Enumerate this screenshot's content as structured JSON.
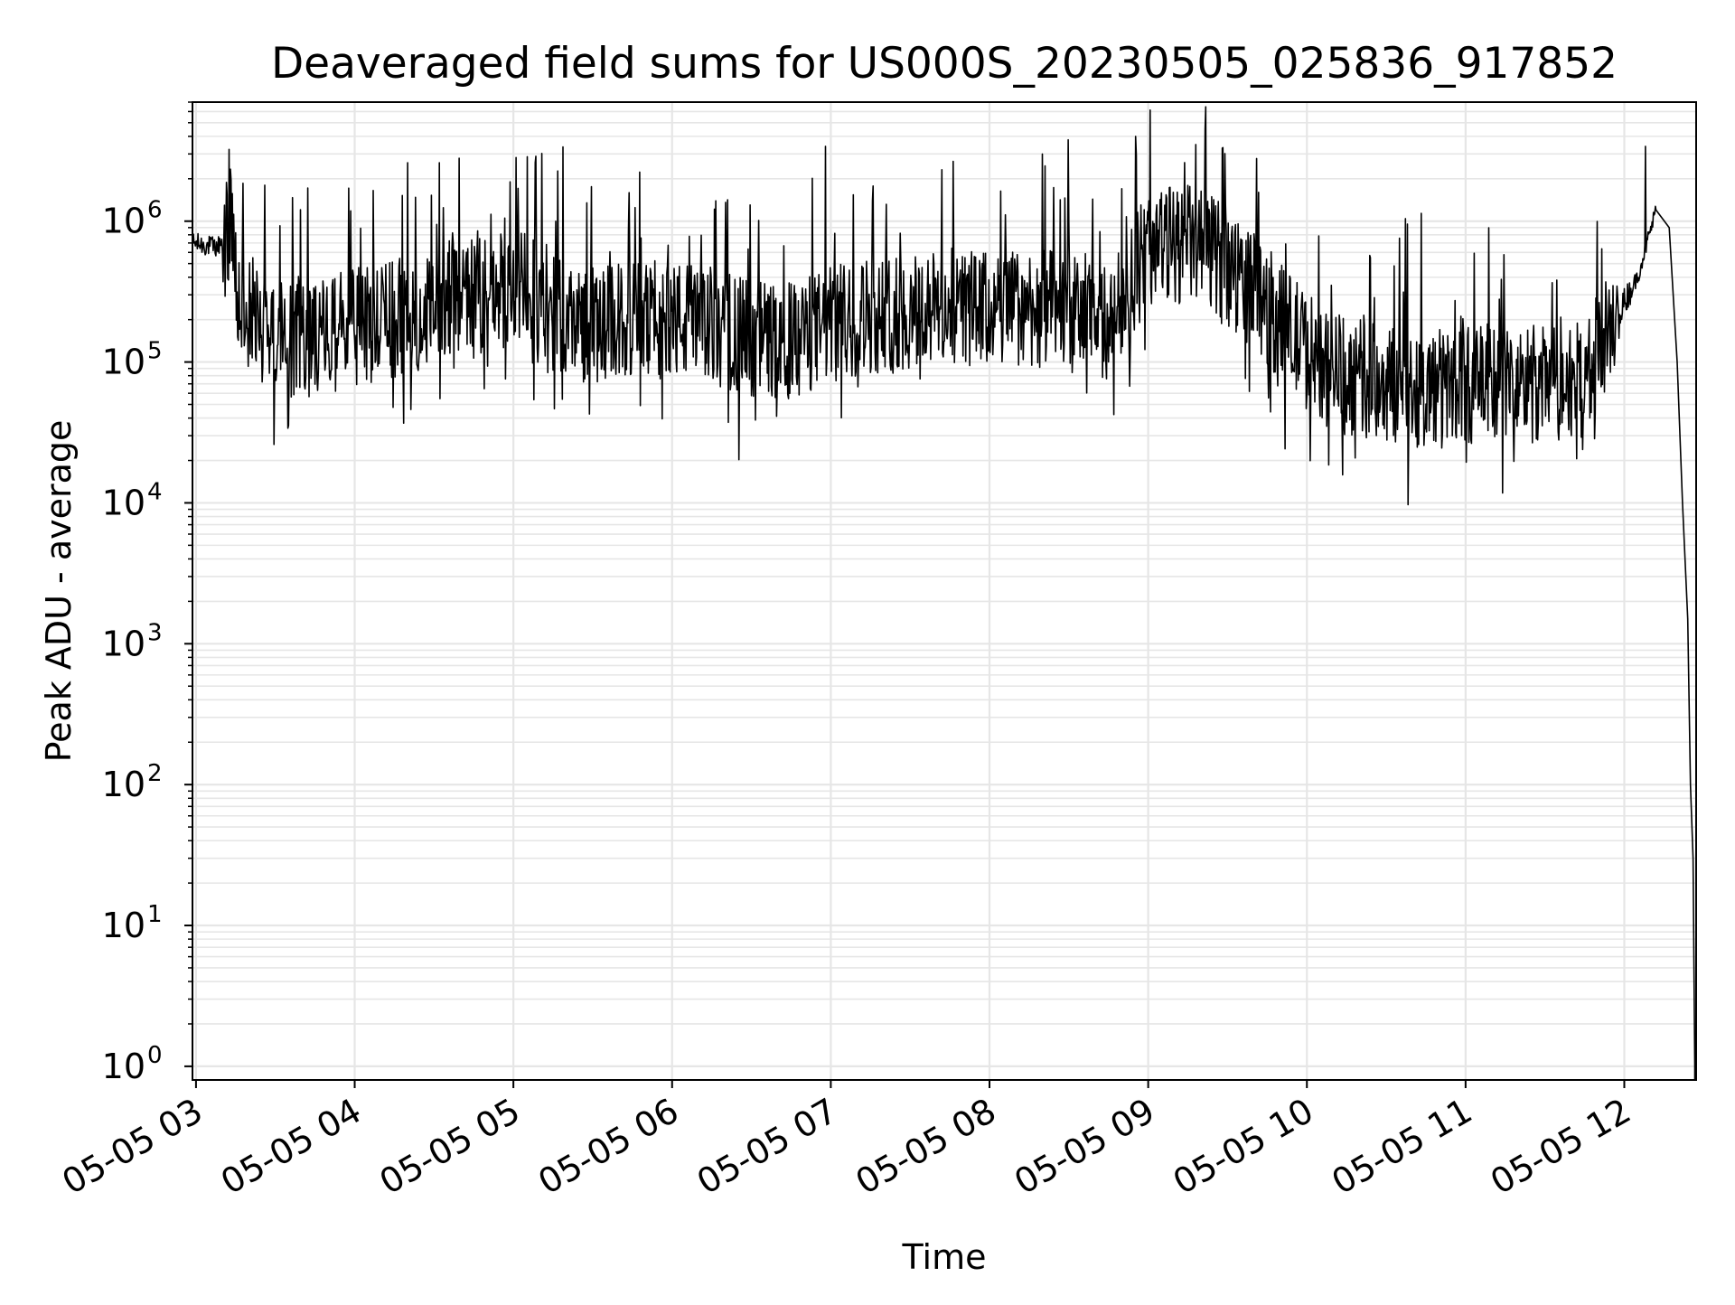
{
  "chart_data": {
    "type": "line",
    "title": "Deaveraged field sums for US000S_20230505_025836_917852",
    "xlabel": "Time",
    "ylabel": "Peak ADU - average",
    "yscale": "log",
    "ylim": [
      0.8,
      7000000
    ],
    "xlim": [
      "05-05 02:58:40",
      "05-05 12:27:10"
    ],
    "grid": "on (major and minor, light grey)",
    "legend": "none",
    "line_color": "#000000",
    "grid_color": "#e6e6e6",
    "x_ticks": [
      {
        "t": "05-05 03:00",
        "label": "05-05 03"
      },
      {
        "t": "05-05 04:00",
        "label": "05-05 04"
      },
      {
        "t": "05-05 05:00",
        "label": "05-05 05"
      },
      {
        "t": "05-05 06:00",
        "label": "05-05 06"
      },
      {
        "t": "05-05 07:00",
        "label": "05-05 07"
      },
      {
        "t": "05-05 08:00",
        "label": "05-05 08"
      },
      {
        "t": "05-05 09:00",
        "label": "05-05 09"
      },
      {
        "t": "05-05 10:00",
        "label": "05-05 10"
      },
      {
        "t": "05-05 11:00",
        "label": "05-05 11"
      },
      {
        "t": "05-05 12:00",
        "label": "05-05 12"
      }
    ],
    "y_ticks": [
      {
        "value": 1,
        "base": "10",
        "exp": "0"
      },
      {
        "value": 10,
        "base": "10",
        "exp": "1"
      },
      {
        "value": 100,
        "base": "10",
        "exp": "2"
      },
      {
        "value": 1000,
        "base": "10",
        "exp": "3"
      },
      {
        "value": 10000,
        "base": "10",
        "exp": "4"
      },
      {
        "value": 100000,
        "base": "10",
        "exp": "5"
      },
      {
        "value": 1000000,
        "base": "10",
        "exp": "6"
      }
    ],
    "series": [
      {
        "x": [
          "05-05 02:59",
          "05-05 03:08",
          "05-05 03:13",
          "05-05 03:16",
          "05-05 03:20",
          "05-05 03:30",
          "05-05 03:45",
          "05-05 04:00",
          "05-05 04:15",
          "05-05 04:30",
          "05-05 04:45",
          "05-05 05:00",
          "05-05 05:15",
          "05-05 05:30",
          "05-05 05:45",
          "05-05 06:00",
          "05-05 06:15",
          "05-05 06:30",
          "05-05 06:45",
          "05-05 07:00",
          "05-05 07:15",
          "05-05 07:30",
          "05-05 07:45",
          "05-05 08:00",
          "05-05 08:15",
          "05-05 08:30",
          "05-05 08:45",
          "05-05 09:00",
          "05-05 09:15",
          "05-05 09:30",
          "05-05 09:45",
          "05-05 10:00",
          "05-05 10:15",
          "05-05 10:30",
          "05-05 10:45",
          "05-05 11:00",
          "05-05 11:15",
          "05-05 11:30",
          "05-05 11:45",
          "05-05 11:55",
          "05-05 12:05",
          "05-05 12:12",
          "05-05 12:17",
          "05-05 12:20",
          "05-05 12:22",
          "05-05 12:24",
          "05-05 12:25",
          "05-05 12:26",
          "05-05 12:26:40"
        ],
        "y": [
          700000,
          650000,
          900000,
          250000,
          220000,
          150000,
          150000,
          180000,
          200000,
          250000,
          280000,
          350000,
          220000,
          180000,
          200000,
          200000,
          180000,
          150000,
          140000,
          180000,
          220000,
          220000,
          250000,
          230000,
          250000,
          220000,
          180000,
          650000,
          700000,
          500000,
          250000,
          120000,
          80000,
          70000,
          65000,
          70000,
          70000,
          70000,
          75000,
          180000,
          400000,
          1200000,
          900000,
          100000,
          10000,
          1500,
          100,
          30,
          1
        ]
      }
    ],
    "peaks": [
      {
        "x": "05-05 03:26",
        "y": 1800000
      },
      {
        "x": "05-05 04:07",
        "y": 1650000
      },
      {
        "x": "05-05 04:20",
        "y": 2600000
      },
      {
        "x": "05-05 04:32",
        "y": 2600000
      },
      {
        "x": "05-05 06:58",
        "y": 3400000
      },
      {
        "x": "05-05 08:20",
        "y": 3000000
      },
      {
        "x": "05-05 08:50",
        "y": 1700000
      },
      {
        "x": "05-05 09:18",
        "y": 3500000
      },
      {
        "x": "05-05 09:28",
        "y": 3300000
      },
      {
        "x": "05-05 12:08",
        "y": 3400000
      }
    ]
  }
}
